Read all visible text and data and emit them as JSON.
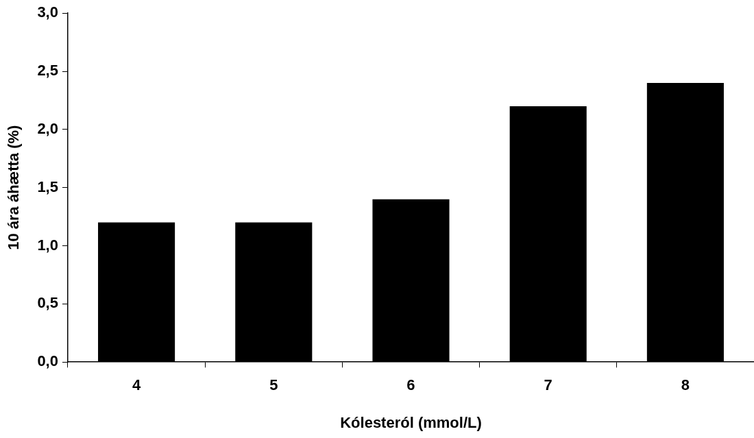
{
  "chart_data": {
    "type": "bar",
    "xlabel": "Kólesteról (mmol/L)",
    "ylabel": "10 ára áhætta (%)",
    "categories": [
      "4",
      "5",
      "6",
      "7",
      "8"
    ],
    "values": [
      1.2,
      1.2,
      1.4,
      2.2,
      2.4
    ],
    "color": "#000000",
    "ylim": [
      0,
      3
    ],
    "yticks": [
      {
        "value": 0,
        "label": "0,0"
      },
      {
        "value": 0.5,
        "label": "0,5"
      },
      {
        "value": 1,
        "label": "1,0"
      },
      {
        "value": 1.5,
        "label": "1,5"
      },
      {
        "value": 2,
        "label": "2,0"
      },
      {
        "value": 2.5,
        "label": "2,5"
      },
      {
        "value": 3,
        "label": "3,0"
      }
    ],
    "grid": false,
    "legend": false
  }
}
